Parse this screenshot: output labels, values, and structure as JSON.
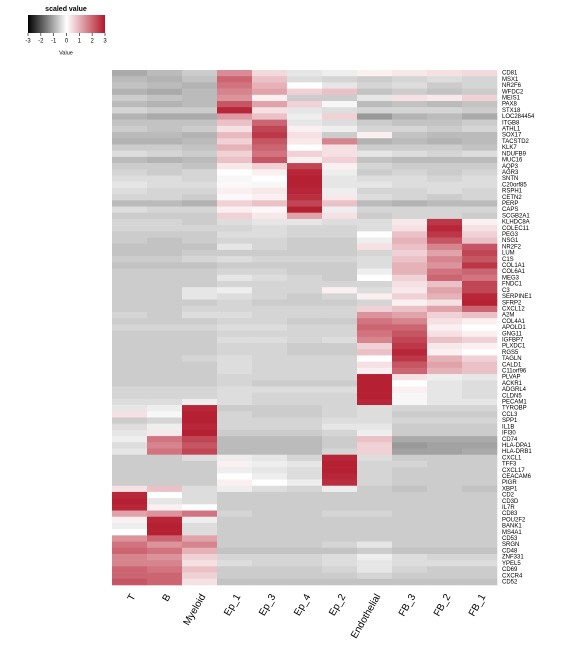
{
  "chart_data": {
    "type": "heatmap",
    "legend_title": "scaled value",
    "legend_label": "Value",
    "zlim": [
      -3,
      3
    ],
    "zticks": [
      -3,
      -2,
      -1,
      0,
      1,
      2,
      3
    ],
    "colors": [
      "#000000",
      "#ffffff",
      "#b2182b"
    ],
    "x": [
      "T",
      "B",
      "Myeloid",
      "Ep_1",
      "Ep_3",
      "Ep_4",
      "Ep_2",
      "Endothelial",
      "FB_3",
      "FB_2",
      "FB_1"
    ],
    "y": [
      "CD81",
      "MSX1",
      "NR2F6",
      "WFDC2",
      "MEIS1",
      "PAX8",
      "STX18",
      "LOC284454",
      "ITGB8",
      "ATHL1",
      "SOX17",
      "TACSTD2",
      "KLK7",
      "NDUFB9",
      "MUC16",
      "AQP3",
      "AGR3",
      "SNTN",
      "C20orf85",
      "RSPH1",
      "CETN2",
      "PERP",
      "CAPS",
      "SCGB2A1",
      "KLHDC8A",
      "COLEC11",
      "PEG3",
      "NSG1",
      "NR2F2",
      "LUM",
      "C1S",
      "COL1A1",
      "COL6A1",
      "MEG3",
      "FNDC1",
      "C3",
      "SERPINE1",
      "SFRP2",
      "CXCL12",
      "A2M",
      "COL4A1",
      "APOLD1",
      "GNG11",
      "IGFBP7",
      "PLXDC1",
      "RGS5",
      "TAGLN",
      "CALD1",
      "C11orf96",
      "PLVAP",
      "ACKR1",
      "ADGRL4",
      "CLDN5",
      "PECAM1",
      "TYROBP",
      "CCL3",
      "SPP1",
      "IL1B",
      "IFI30",
      "CD74",
      "HLA-DPA1",
      "HLA-DRB1",
      "CXCL1",
      "TFF3",
      "CXCL17",
      "CEACAM6",
      "PIGR",
      "XBP1",
      "CD2",
      "CD3D",
      "IL7R",
      "CD83",
      "POU2F2",
      "BANK1",
      "MS4A1",
      "CD53",
      "SRGN",
      "CD48",
      "ZNF331",
      "YPEL5",
      "CD69",
      "CXCR4",
      "CD52"
    ],
    "z": [
      [
        -1,
        -0.8,
        -0.6,
        1.5,
        0.5,
        -0.3,
        -0.2,
        0.2,
        0.3,
        0.4,
        0.5
      ],
      [
        -0.8,
        -0.9,
        -0.7,
        2,
        0.8,
        -0.4,
        -0.5,
        -0.6,
        -0.5,
        -0.4,
        -0.5
      ],
      [
        -0.7,
        -0.8,
        -0.9,
        1.8,
        1,
        0,
        -0.3,
        -0.5,
        -0.4,
        -0.6,
        -0.5
      ],
      [
        -0.9,
        -1,
        -0.8,
        1.6,
        1.2,
        0.6,
        0.8,
        -0.7,
        -0.6,
        -0.7,
        -0.6
      ],
      [
        -0.6,
        -0.7,
        -0.8,
        1.4,
        0.2,
        -0.6,
        -0.6,
        -0.3,
        0.4,
        0.3,
        0.6
      ],
      [
        -0.8,
        -0.9,
        -0.8,
        2.2,
        1.2,
        0.6,
        -0.1,
        -0.8,
        -0.7,
        -0.8,
        -0.7
      ],
      [
        -0.5,
        -0.6,
        -0.6,
        2.8,
        0.4,
        -0.3,
        -0.4,
        -0.5,
        -0.5,
        -0.5,
        -0.6
      ],
      [
        -0.9,
        -1,
        -1,
        1.3,
        0.8,
        -0.2,
        0.6,
        -1.2,
        -0.9,
        -0.8,
        -1
      ],
      [
        -0.7,
        -0.7,
        -0.7,
        0.8,
        2,
        -0.3,
        -0.4,
        -0.6,
        -0.7,
        -0.7,
        -0.6
      ],
      [
        -0.6,
        -0.7,
        -0.6,
        0.4,
        2.4,
        0.2,
        -0.2,
        -0.5,
        -0.5,
        -0.6,
        -0.5
      ],
      [
        -0.8,
        -0.8,
        -0.9,
        0.9,
        2.6,
        0.4,
        -0.6,
        0.2,
        -0.7,
        -0.8,
        -0.8
      ],
      [
        -0.9,
        -0.9,
        -0.8,
        0.6,
        2.2,
        0.3,
        1.6,
        -0.9,
        -0.8,
        -0.9,
        -0.8
      ],
      [
        -0.6,
        -0.6,
        -0.7,
        1,
        2,
        0,
        0.4,
        -0.6,
        -0.6,
        -0.6,
        -0.7
      ],
      [
        -0.4,
        -0.5,
        -0.6,
        0.6,
        1.8,
        0.6,
        0.4,
        -0.3,
        -0.4,
        -0.5,
        -0.4
      ],
      [
        -0.8,
        -0.9,
        -0.8,
        0.8,
        2.2,
        0.2,
        0.6,
        -0.7,
        -0.8,
        -0.8,
        -0.8
      ],
      [
        -0.6,
        -0.6,
        -0.7,
        0.3,
        0.6,
        2.4,
        0.2,
        -0.5,
        -0.6,
        -0.6,
        -0.6
      ],
      [
        -0.5,
        -0.6,
        -0.5,
        0,
        0.2,
        2.8,
        -0.2,
        -0.6,
        -0.5,
        -0.6,
        -0.5
      ],
      [
        -0.4,
        -0.4,
        -0.5,
        -0.1,
        0,
        2.9,
        -0.3,
        -0.4,
        -0.4,
        -0.5,
        -0.4
      ],
      [
        -0.3,
        -0.4,
        -0.4,
        0.1,
        -0.1,
        2.9,
        -0.3,
        -0.3,
        -0.4,
        -0.4,
        -0.4
      ],
      [
        -0.4,
        -0.5,
        -0.5,
        0.2,
        0.3,
        2.8,
        -0.2,
        -0.5,
        -0.5,
        -0.4,
        -0.5
      ],
      [
        -0.5,
        -0.5,
        -0.6,
        0.1,
        0.2,
        2.7,
        0.3,
        -0.4,
        -0.5,
        -0.6,
        -0.5
      ],
      [
        -0.8,
        -0.8,
        -0.9,
        0.6,
        0.8,
        2.4,
        0.8,
        -0.8,
        -0.9,
        -0.8,
        -0.8
      ],
      [
        -0.4,
        -0.5,
        -0.5,
        0.2,
        0.1,
        2.9,
        -0.2,
        -0.5,
        -0.5,
        -0.5,
        -0.5
      ],
      [
        -0.6,
        -0.6,
        -0.6,
        0.6,
        0.3,
        1.2,
        0.4,
        -0.6,
        -0.5,
        -0.5,
        -0.6
      ],
      [
        -0.5,
        -0.5,
        -0.6,
        -0.4,
        -0.3,
        -0.3,
        -0.4,
        -0.4,
        0.3,
        2.6,
        0.2
      ],
      [
        -0.5,
        -0.5,
        -0.5,
        -0.5,
        -0.4,
        -0.5,
        -0.5,
        -0.4,
        0.4,
        2.8,
        0.4
      ],
      [
        -0.6,
        -0.6,
        -0.6,
        -0.4,
        -0.4,
        -0.5,
        -0.5,
        0,
        0.8,
        2.6,
        0.6
      ],
      [
        -0.6,
        -0.7,
        -0.6,
        -0.5,
        -0.5,
        -0.6,
        -0.6,
        -0.2,
        1,
        2.2,
        0.8
      ],
      [
        -0.7,
        -0.7,
        -0.7,
        -0.3,
        -0.5,
        -0.6,
        -0.6,
        0.4,
        0.8,
        1.6,
        2.2
      ],
      [
        -0.7,
        -0.7,
        -0.6,
        -0.6,
        -0.6,
        -0.6,
        -0.6,
        -0.5,
        0.6,
        1.2,
        2.4
      ],
      [
        -0.6,
        -0.6,
        -0.5,
        -0.4,
        -0.5,
        -0.5,
        -0.5,
        -0.4,
        0.8,
        1.6,
        2.2
      ],
      [
        -0.7,
        -0.7,
        -0.7,
        -0.6,
        -0.6,
        -0.6,
        -0.6,
        -0.4,
        1,
        1.4,
        2.6
      ],
      [
        -0.6,
        -0.6,
        -0.6,
        -0.5,
        -0.5,
        -0.6,
        -0.6,
        -0.2,
        1,
        1.8,
        2
      ],
      [
        -0.6,
        -0.6,
        -0.6,
        -0.3,
        -0.4,
        -0.5,
        -0.6,
        0,
        0.6,
        2,
        1.8
      ],
      [
        -0.6,
        -0.6,
        -0.6,
        -0.5,
        -0.5,
        -0.5,
        -0.5,
        -0.5,
        0.4,
        0.8,
        2.4
      ],
      [
        -0.6,
        -0.6,
        -0.3,
        -0.2,
        -0.5,
        -0.5,
        0.2,
        -0.4,
        0.3,
        1.2,
        2.4
      ],
      [
        -0.6,
        -0.6,
        -0.3,
        -0.4,
        -0.5,
        -0.6,
        -0.5,
        0.2,
        0.6,
        1,
        2.8
      ],
      [
        -0.6,
        -0.6,
        -0.6,
        -0.5,
        -0.6,
        -0.6,
        -0.6,
        -0.5,
        0.2,
        0.4,
        2.9
      ],
      [
        -0.6,
        -0.6,
        -0.5,
        -0.5,
        -0.5,
        -0.5,
        -0.5,
        0.6,
        0.8,
        1.2,
        2
      ],
      [
        -0.5,
        -0.6,
        -0.4,
        -0.4,
        -0.5,
        -0.5,
        -0.5,
        1.4,
        1.2,
        0.6,
        0.8
      ],
      [
        -0.6,
        -0.6,
        -0.6,
        -0.5,
        -0.5,
        -0.6,
        -0.6,
        1.8,
        1.6,
        0.4,
        0.2
      ],
      [
        -0.5,
        -0.5,
        -0.5,
        -0.4,
        -0.4,
        -0.5,
        -0.5,
        2,
        2,
        0.2,
        0
      ],
      [
        -0.6,
        -0.6,
        -0.6,
        -0.5,
        -0.5,
        -0.5,
        -0.5,
        1.8,
        2.2,
        0.4,
        0.2
      ],
      [
        -0.6,
        -0.6,
        -0.6,
        -0.4,
        -0.4,
        -0.5,
        -0.4,
        1.6,
        2.4,
        0.8,
        0.6
      ],
      [
        -0.6,
        -0.6,
        -0.6,
        -0.5,
        -0.5,
        -0.6,
        -0.6,
        0.6,
        2.6,
        0.3,
        0.2
      ],
      [
        -0.6,
        -0.6,
        -0.6,
        -0.5,
        -0.5,
        -0.6,
        -0.6,
        0.8,
        2.8,
        0.2,
        0
      ],
      [
        -0.6,
        -0.6,
        -0.5,
        -0.4,
        -0.5,
        -0.5,
        -0.5,
        0,
        2.6,
        1,
        0.6
      ],
      [
        -0.6,
        -0.6,
        -0.6,
        -0.4,
        -0.5,
        -0.5,
        -0.5,
        0.4,
        2.2,
        1.2,
        0.8
      ],
      [
        -0.6,
        -0.6,
        -0.6,
        -0.4,
        -0.5,
        -0.5,
        -0.5,
        0.2,
        2,
        1,
        0.8
      ],
      [
        -0.6,
        -0.6,
        -0.6,
        -0.5,
        -0.5,
        -0.5,
        -0.5,
        2.9,
        0.4,
        -0.2,
        -0.3
      ],
      [
        -0.6,
        -0.6,
        -0.6,
        -0.5,
        -0.6,
        -0.6,
        -0.6,
        2.9,
        0,
        -0.3,
        -0.4
      ],
      [
        -0.5,
        -0.5,
        -0.5,
        -0.4,
        -0.4,
        -0.4,
        -0.4,
        2.9,
        0.2,
        -0.3,
        -0.4
      ],
      [
        -0.5,
        -0.5,
        -0.5,
        -0.4,
        -0.5,
        -0.5,
        -0.5,
        2.9,
        -0.1,
        -0.3,
        -0.4
      ],
      [
        -0.4,
        -0.4,
        -0.2,
        -0.4,
        -0.5,
        -0.5,
        -0.5,
        2.8,
        -0.1,
        -0.3,
        -0.3
      ],
      [
        -0.3,
        -0.2,
        2.8,
        -0.6,
        -0.6,
        -0.6,
        -0.5,
        -0.4,
        -0.5,
        -0.5,
        -0.5
      ],
      [
        0.4,
        -0.1,
        2.9,
        -0.5,
        -0.6,
        -0.6,
        -0.5,
        -0.4,
        -0.6,
        -0.6,
        -0.6
      ],
      [
        -0.6,
        -0.5,
        2.9,
        -0.5,
        -0.5,
        -0.5,
        -0.4,
        -0.4,
        -0.5,
        -0.5,
        -0.5
      ],
      [
        -0.4,
        -0.2,
        2.8,
        -0.5,
        -0.5,
        -0.5,
        -0.3,
        -0.3,
        -0.6,
        -0.6,
        -0.6
      ],
      [
        -0.3,
        0.3,
        2.9,
        -0.6,
        -0.6,
        -0.6,
        -0.5,
        -0.2,
        -0.6,
        -0.6,
        -0.6
      ],
      [
        -0.2,
        1.8,
        2.4,
        -0.8,
        -0.8,
        -0.8,
        -0.6,
        0.8,
        -1,
        -1,
        -1
      ],
      [
        -0.4,
        1.6,
        2.2,
        -0.8,
        -0.8,
        -0.8,
        -0.6,
        0.6,
        -1.2,
        -1.1,
        -1.1
      ],
      [
        -0.3,
        1.8,
        2.4,
        -0.8,
        -0.8,
        -0.8,
        -0.5,
        0.6,
        -1.1,
        -1.1,
        -1
      ],
      [
        -0.6,
        -0.6,
        -0.4,
        -0.2,
        -0.3,
        -0.5,
        2.8,
        -0.4,
        -0.6,
        -0.6,
        -0.6
      ],
      [
        -0.6,
        -0.6,
        -0.6,
        0.2,
        -0.2,
        -0.3,
        2.9,
        -0.5,
        -0.5,
        -0.6,
        -0.6
      ],
      [
        -0.6,
        -0.6,
        -0.6,
        -0.2,
        -0.3,
        -0.4,
        2.9,
        -0.5,
        -0.6,
        -0.6,
        -0.6
      ],
      [
        -0.6,
        -0.6,
        -0.6,
        0,
        -0.2,
        -0.4,
        2.8,
        -0.5,
        -0.6,
        -0.6,
        -0.6
      ],
      [
        -0.6,
        -0.6,
        -0.6,
        0.2,
        0,
        -0.2,
        2.7,
        -0.5,
        -0.6,
        -0.6,
        -0.6
      ],
      [
        0.4,
        0.8,
        -0.4,
        -0.2,
        -0.4,
        -0.5,
        -0.2,
        -0.6,
        -0.7,
        -0.6,
        -0.7
      ],
      [
        2.8,
        0,
        -0.4,
        -0.6,
        -0.6,
        -0.6,
        -0.6,
        -0.6,
        -0.6,
        -0.6,
        -0.6
      ],
      [
        2.9,
        -0.3,
        -0.4,
        -0.6,
        -0.6,
        -0.6,
        -0.6,
        -0.6,
        -0.6,
        -0.6,
        -0.6
      ],
      [
        2.8,
        0.2,
        0,
        -0.6,
        -0.6,
        -0.6,
        -0.6,
        -0.6,
        -0.6,
        -0.6,
        -0.6
      ],
      [
        1.2,
        1.4,
        1.8,
        -0.5,
        -0.6,
        -0.6,
        -0.5,
        -0.5,
        -0.6,
        -0.6,
        -0.6
      ],
      [
        0.2,
        2.8,
        -0.2,
        -0.6,
        -0.6,
        -0.6,
        -0.6,
        -0.6,
        -0.6,
        -0.6,
        -0.6
      ],
      [
        -0.2,
        2.9,
        -0.4,
        -0.6,
        -0.6,
        -0.6,
        -0.6,
        -0.6,
        -0.6,
        -0.6,
        -0.6
      ],
      [
        0,
        2.9,
        -0.4,
        -0.6,
        -0.6,
        -0.6,
        -0.6,
        -0.6,
        -0.6,
        -0.6,
        -0.6
      ],
      [
        1.4,
        2,
        1.2,
        -0.6,
        -0.6,
        -0.6,
        -0.6,
        -0.6,
        -0.6,
        -0.6,
        -0.6
      ],
      [
        1.8,
        1.4,
        1.6,
        -0.6,
        -0.6,
        -0.6,
        -0.5,
        -0.3,
        -0.6,
        -0.6,
        -0.6
      ],
      [
        2,
        1.8,
        1,
        -0.7,
        -0.7,
        -0.7,
        -0.7,
        -0.6,
        -0.7,
        -0.7,
        -0.7
      ],
      [
        1.6,
        1.4,
        0.6,
        -0.5,
        -0.5,
        -0.5,
        -0.4,
        -0.2,
        -0.4,
        -0.5,
        -0.5
      ],
      [
        1.6,
        1.6,
        0.4,
        -0.4,
        -0.5,
        -0.5,
        -0.4,
        -0.3,
        -0.4,
        -0.4,
        -0.4
      ],
      [
        2,
        1.8,
        0.8,
        -0.6,
        -0.6,
        -0.6,
        -0.5,
        -0.3,
        -0.5,
        -0.6,
        -0.6
      ],
      [
        2,
        2,
        0.6,
        -0.6,
        -0.6,
        -0.6,
        -0.6,
        -0.5,
        -0.6,
        -0.6,
        -0.6
      ],
      [
        2.2,
        2,
        0.4,
        -0.7,
        -0.7,
        -0.7,
        -0.7,
        -0.7,
        -0.7,
        -0.7,
        -0.7
      ]
    ]
  }
}
